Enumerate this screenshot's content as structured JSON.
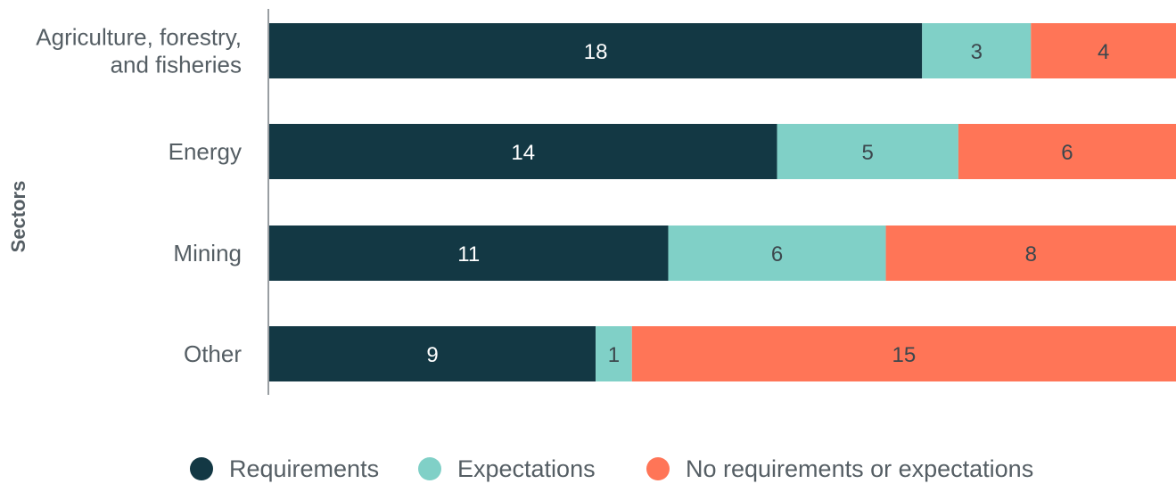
{
  "chart_data": {
    "type": "bar",
    "orientation": "horizontal",
    "stacked": true,
    "normalized": true,
    "title": "",
    "xlabel": "",
    "ylabel": "Sectors",
    "categories": [
      "Agriculture, forestry, and fisheries",
      "Energy",
      "Mining",
      "Other"
    ],
    "category_lines": [
      [
        "Agriculture, forestry,",
        "and fisheries"
      ],
      [
        "Energy"
      ],
      [
        "Mining"
      ],
      [
        "Other"
      ]
    ],
    "series": [
      {
        "name": "Requirements",
        "values": [
          18,
          14,
          11,
          9
        ],
        "color": "#133844",
        "label_color": "#ffffff"
      },
      {
        "name": "Expectations",
        "values": [
          3,
          5,
          6,
          1
        ],
        "color": "#80d0c7",
        "label_color": "#3c474d"
      },
      {
        "name": "No requirements or expectations",
        "values": [
          4,
          6,
          8,
          15
        ],
        "color": "#ff7557",
        "label_color": "#3c474d"
      }
    ],
    "legend_position": "bottom",
    "grid": false
  }
}
